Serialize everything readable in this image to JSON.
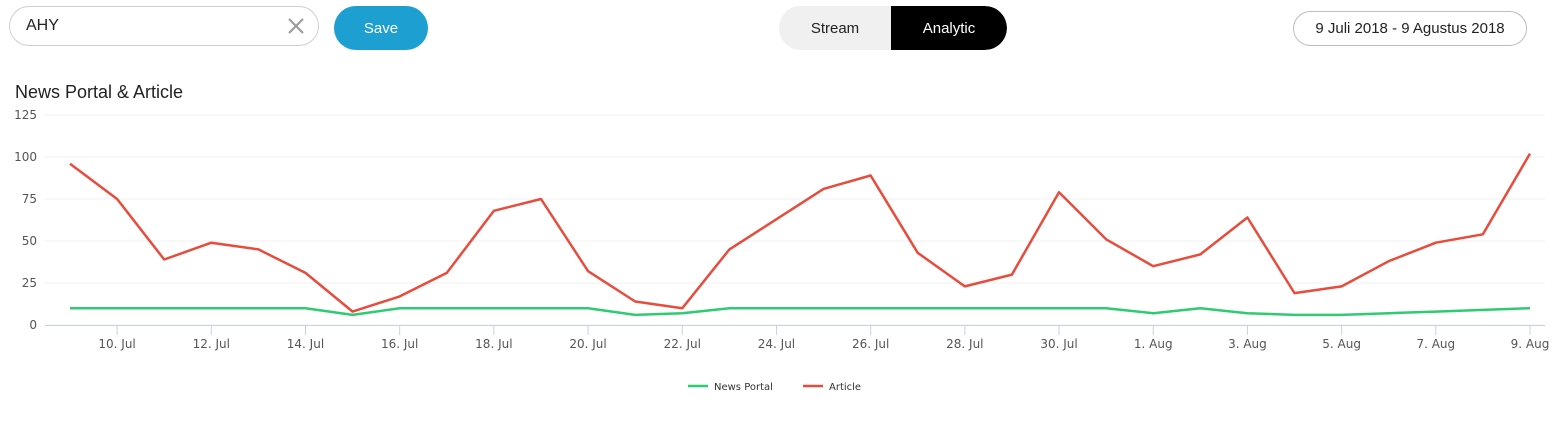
{
  "search": {
    "value": "AHY"
  },
  "toolbar": {
    "save_label": "Save"
  },
  "view_toggle": {
    "tabs": [
      {
        "label": "Stream",
        "active": false
      },
      {
        "label": "Analytic",
        "active": true
      }
    ]
  },
  "date_range": {
    "label": "9 Juli 2018 - 9 Agustus 2018"
  },
  "colors": {
    "accent": "#1d9fd2",
    "news_portal": "#2ecc71",
    "article": "#e74c3c"
  },
  "icons": {
    "clear": "close-icon"
  },
  "chart_data": {
    "type": "line",
    "title": "News Portal & Article",
    "xlabel": "",
    "ylabel": "",
    "ylim": [
      0,
      125
    ],
    "y_ticks": [
      0,
      25,
      50,
      75,
      100,
      125
    ],
    "x": [
      "9. Jul",
      "10. Jul",
      "11. Jul",
      "12. Jul",
      "13. Jul",
      "14. Jul",
      "15. Jul",
      "16. Jul",
      "17. Jul",
      "18. Jul",
      "19. Jul",
      "20. Jul",
      "21. Jul",
      "22. Jul",
      "23. Jul",
      "24. Jul",
      "25. Jul",
      "26. Jul",
      "27. Jul",
      "28. Jul",
      "29. Jul",
      "30. Jul",
      "31. Jul",
      "1. Aug",
      "2. Aug",
      "3. Aug",
      "4. Aug",
      "5. Aug",
      "6. Aug",
      "7. Aug",
      "8. Aug",
      "9. Aug"
    ],
    "x_tick_labels": [
      "10. Jul",
      "12. Jul",
      "14. Jul",
      "16. Jul",
      "18. Jul",
      "20. Jul",
      "22. Jul",
      "24. Jul",
      "26. Jul",
      "28. Jul",
      "30. Jul",
      "1. Aug",
      "3. Aug",
      "5. Aug",
      "7. Aug",
      "9. Aug"
    ],
    "series": [
      {
        "name": "News Portal",
        "color": "#2ecc71",
        "values": [
          10,
          10,
          10,
          10,
          10,
          10,
          6,
          10,
          10,
          10,
          10,
          10,
          6,
          7,
          10,
          10,
          10,
          10,
          10,
          10,
          10,
          10,
          10,
          7,
          10,
          7,
          6,
          6,
          7,
          8,
          9,
          10
        ]
      },
      {
        "name": "Article",
        "color": "#e74c3c",
        "values": [
          96,
          75,
          39,
          49,
          45,
          31,
          8,
          17,
          31,
          68,
          75,
          32,
          14,
          10,
          45,
          63,
          81,
          89,
          43,
          23,
          30,
          79,
          51,
          35,
          42,
          64,
          19,
          23,
          38,
          49,
          54,
          102
        ]
      }
    ],
    "grid": true,
    "legend": "bottom-center"
  }
}
